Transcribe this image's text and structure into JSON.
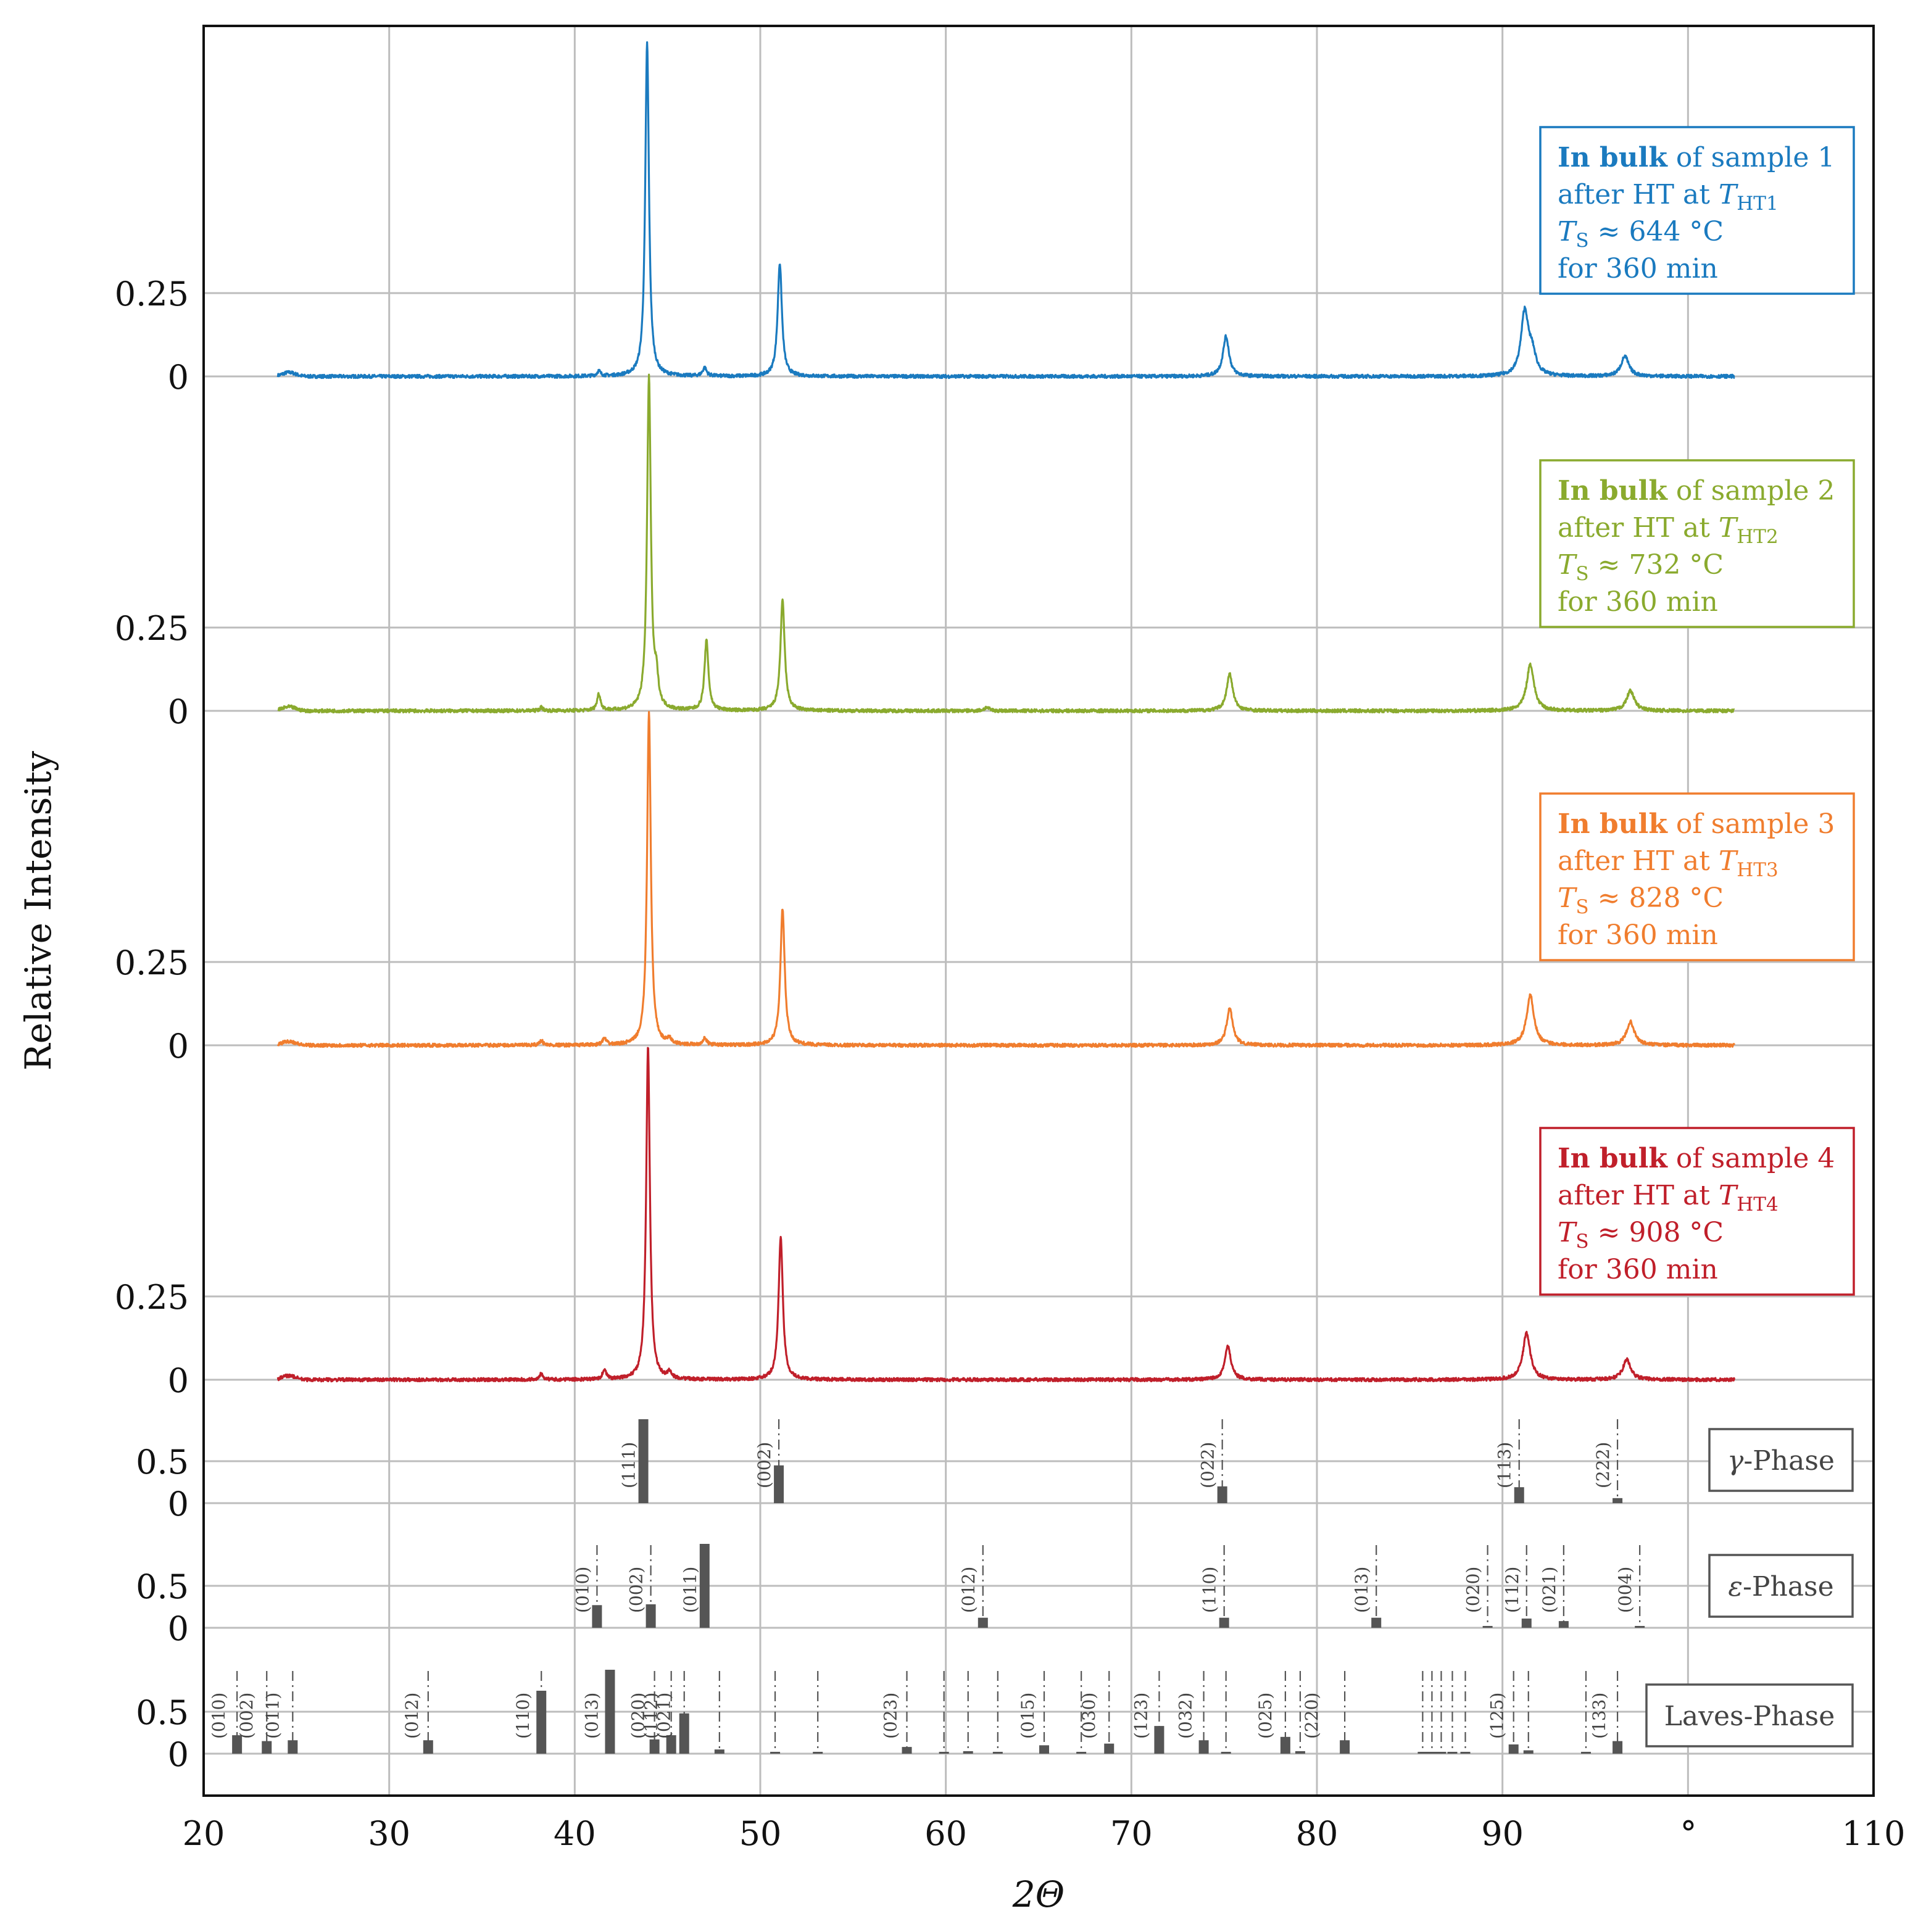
{
  "chart_data": {
    "type": "line",
    "xlabel": "2Θ",
    "ylabel": "Relative Intensity",
    "x_unit": "°",
    "xlim": [
      20,
      110
    ],
    "xticks": [
      "20",
      "30",
      "40",
      "50",
      "60",
      "70",
      "80",
      "90",
      "110"
    ],
    "spectrum_yticks": [
      "0",
      "0.25"
    ],
    "phase_yticks": [
      "0",
      "0.5"
    ],
    "colors": {
      "sample1": "#1a7abf",
      "sample2": "#8aaa2e",
      "sample3": "#f07d2e",
      "sample4": "#c01f2a",
      "phase": "#555555",
      "grid": "#bdbdbd"
    },
    "series": [
      {
        "name": "sample1",
        "legend": {
          "bold": "In bulk",
          "line1": " of sample 1",
          "line2a": "after HT at ",
          "line2sym": "T",
          "line2sub": "HT1",
          "line3sym": "T",
          "line3sub": "S",
          "line3rest": " ≈ 644 °C",
          "line4": "for 360 min"
        },
        "peaks": [
          [
            41.3,
            0.015
          ],
          [
            43.9,
            1.0
          ],
          [
            47.0,
            0.025
          ],
          [
            51.05,
            0.34
          ],
          [
            75.1,
            0.12
          ],
          [
            91.2,
            0.19
          ],
          [
            91.6,
            0.06
          ],
          [
            96.6,
            0.06
          ]
        ]
      },
      {
        "name": "sample2",
        "legend": {
          "bold": "In bulk",
          "line1": " of sample 2",
          "line2a": "after HT at ",
          "line2sym": "T",
          "line2sub": "HT2",
          "line3sym": "T",
          "line3sub": "S",
          "line3rest": " ≈ 732 °C",
          "line4": "for 360 min"
        },
        "peaks": [
          [
            38.2,
            0.01
          ],
          [
            41.3,
            0.05
          ],
          [
            44.0,
            1.0
          ],
          [
            44.4,
            0.08
          ],
          [
            47.1,
            0.21
          ],
          [
            51.2,
            0.33
          ],
          [
            62.2,
            0.01
          ],
          [
            75.3,
            0.11
          ],
          [
            91.5,
            0.14
          ],
          [
            96.9,
            0.06
          ]
        ]
      },
      {
        "name": "sample3",
        "legend": {
          "bold": "In bulk",
          "line1": " of sample 3",
          "line2a": "after HT at ",
          "line2sym": "T",
          "line2sub": "HT3",
          "line3sym": "T",
          "line3sub": "S",
          "line3rest": " ≈ 828 °C",
          "line4": "for 360 min"
        },
        "peaks": [
          [
            38.2,
            0.015
          ],
          [
            41.6,
            0.02
          ],
          [
            44.0,
            1.0
          ],
          [
            45.1,
            0.015
          ],
          [
            47.0,
            0.02
          ],
          [
            51.2,
            0.41
          ],
          [
            75.3,
            0.11
          ],
          [
            91.5,
            0.15
          ],
          [
            96.9,
            0.07
          ]
        ]
      },
      {
        "name": "sample4",
        "legend": {
          "bold": "In bulk",
          "line1": " of sample 4",
          "line2a": "after HT at ",
          "line2sym": "T",
          "line2sub": "HT4",
          "line3sym": "T",
          "line3sub": "S",
          "line3rest": " ≈ 908 °C",
          "line4": "for 360 min"
        },
        "peaks": [
          [
            38.2,
            0.02
          ],
          [
            41.6,
            0.03
          ],
          [
            43.95,
            1.0
          ],
          [
            45.1,
            0.02
          ],
          [
            51.1,
            0.43
          ],
          [
            75.2,
            0.1
          ],
          [
            91.3,
            0.14
          ],
          [
            96.7,
            0.06
          ]
        ]
      }
    ],
    "phases": [
      {
        "name": "γ-Phase",
        "lines": [
          [
            43.7,
            1.0
          ],
          [
            51.0,
            0.45
          ],
          [
            74.9,
            0.2
          ],
          [
            90.9,
            0.19
          ],
          [
            96.2,
            0.06
          ]
        ],
        "labels": [
          [
            "(111)",
            43.7
          ],
          [
            "(002)",
            51.0
          ],
          [
            "(022)",
            74.9
          ],
          [
            "(113)",
            90.9
          ],
          [
            "(222)",
            96.2
          ]
        ]
      },
      {
        "name": "ε-Phase",
        "lines": [
          [
            41.2,
            0.27
          ],
          [
            44.1,
            0.28
          ],
          [
            47.0,
            1.0
          ],
          [
            62.0,
            0.12
          ],
          [
            75.0,
            0.12
          ],
          [
            83.2,
            0.12
          ],
          [
            89.2,
            0.02
          ],
          [
            91.3,
            0.11
          ],
          [
            93.3,
            0.08
          ],
          [
            97.4,
            0.01
          ]
        ],
        "labels": [
          [
            "(010)",
            41.2
          ],
          [
            "(002)",
            44.1
          ],
          [
            "(011)",
            47.0
          ],
          [
            "(012)",
            62.0
          ],
          [
            "(110)",
            75.0
          ],
          [
            "(013)",
            83.2
          ],
          [
            "(020)",
            89.2
          ],
          [
            "(112)",
            91.3
          ],
          [
            "(021)",
            93.3
          ],
          [
            "(004)",
            97.4
          ]
        ]
      },
      {
        "name": "Laves-Phase",
        "lines": [
          [
            21.8,
            0.22
          ],
          [
            23.4,
            0.15
          ],
          [
            24.8,
            0.16
          ],
          [
            32.1,
            0.16
          ],
          [
            38.2,
            0.75
          ],
          [
            41.9,
            1.0
          ],
          [
            44.3,
            0.17
          ],
          [
            45.2,
            0.22
          ],
          [
            45.9,
            0.48
          ],
          [
            47.8,
            0.05
          ],
          [
            50.8,
            0.02
          ],
          [
            53.1,
            0.02
          ],
          [
            57.9,
            0.08
          ],
          [
            59.9,
            0.02
          ],
          [
            61.2,
            0.03
          ],
          [
            62.8,
            0.02
          ],
          [
            65.3,
            0.1
          ],
          [
            67.3,
            0.02
          ],
          [
            68.8,
            0.12
          ],
          [
            71.5,
            0.33
          ],
          [
            73.9,
            0.16
          ],
          [
            75.1,
            0.02
          ],
          [
            78.3,
            0.2
          ],
          [
            79.1,
            0.03
          ],
          [
            81.5,
            0.16
          ],
          [
            85.7,
            0.02
          ],
          [
            86.2,
            0.02
          ],
          [
            86.7,
            0.02
          ],
          [
            87.3,
            0.02
          ],
          [
            88.0,
            0.02
          ],
          [
            90.6,
            0.11
          ],
          [
            91.4,
            0.04
          ],
          [
            94.5,
            0.02
          ],
          [
            96.2,
            0.15
          ]
        ],
        "labels": [
          [
            "(010)",
            21.6
          ],
          [
            "(002)",
            23.1
          ],
          [
            "(011)",
            24.5
          ],
          [
            "(012)",
            32.0
          ],
          [
            "(110)",
            38.0
          ],
          [
            "(013)",
            41.7
          ],
          [
            "(020)",
            44.2
          ],
          [
            "(112)",
            44.9
          ],
          [
            "(021)",
            45.6
          ],
          [
            "(023)",
            57.8
          ],
          [
            "(015)",
            65.2
          ],
          [
            "(030)",
            68.5
          ],
          [
            "(123)",
            71.3
          ],
          [
            "(032)",
            73.7
          ],
          [
            "(025)",
            78.0
          ],
          [
            "(220)",
            80.5
          ],
          [
            "(125)",
            90.5
          ],
          [
            "(133)",
            96.0
          ]
        ]
      }
    ]
  }
}
